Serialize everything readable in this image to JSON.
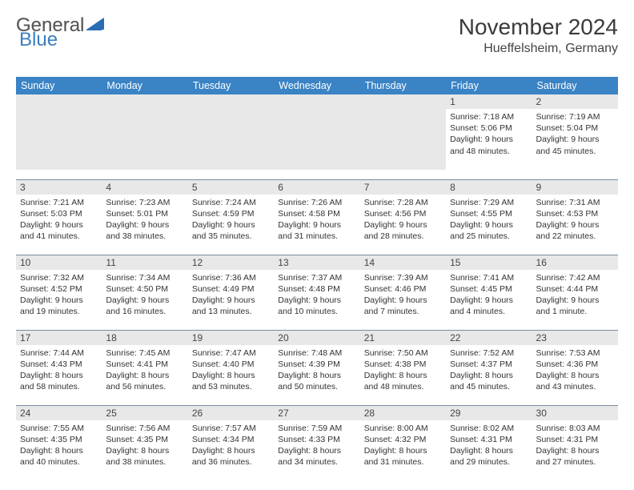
{
  "logo": {
    "part1": "General",
    "part2": "Blue"
  },
  "title": "November 2024",
  "location": "Hueffelsheim, Germany",
  "colors": {
    "header_bg": "#3a83c5",
    "header_text": "#ffffff",
    "daynum_bg": "#e8e8e8",
    "border": "#7a8aa0",
    "logo_blue": "#3a7ebf",
    "text": "#333333",
    "background": "#ffffff"
  },
  "weekdays": [
    "Sunday",
    "Monday",
    "Tuesday",
    "Wednesday",
    "Thursday",
    "Friday",
    "Saturday"
  ],
  "weeks": [
    [
      null,
      null,
      null,
      null,
      null,
      {
        "n": "1",
        "sr": "Sunrise: 7:18 AM",
        "ss": "Sunset: 5:06 PM",
        "dl": "Daylight: 9 hours and 48 minutes."
      },
      {
        "n": "2",
        "sr": "Sunrise: 7:19 AM",
        "ss": "Sunset: 5:04 PM",
        "dl": "Daylight: 9 hours and 45 minutes."
      }
    ],
    [
      {
        "n": "3",
        "sr": "Sunrise: 7:21 AM",
        "ss": "Sunset: 5:03 PM",
        "dl": "Daylight: 9 hours and 41 minutes."
      },
      {
        "n": "4",
        "sr": "Sunrise: 7:23 AM",
        "ss": "Sunset: 5:01 PM",
        "dl": "Daylight: 9 hours and 38 minutes."
      },
      {
        "n": "5",
        "sr": "Sunrise: 7:24 AM",
        "ss": "Sunset: 4:59 PM",
        "dl": "Daylight: 9 hours and 35 minutes."
      },
      {
        "n": "6",
        "sr": "Sunrise: 7:26 AM",
        "ss": "Sunset: 4:58 PM",
        "dl": "Daylight: 9 hours and 31 minutes."
      },
      {
        "n": "7",
        "sr": "Sunrise: 7:28 AM",
        "ss": "Sunset: 4:56 PM",
        "dl": "Daylight: 9 hours and 28 minutes."
      },
      {
        "n": "8",
        "sr": "Sunrise: 7:29 AM",
        "ss": "Sunset: 4:55 PM",
        "dl": "Daylight: 9 hours and 25 minutes."
      },
      {
        "n": "9",
        "sr": "Sunrise: 7:31 AM",
        "ss": "Sunset: 4:53 PM",
        "dl": "Daylight: 9 hours and 22 minutes."
      }
    ],
    [
      {
        "n": "10",
        "sr": "Sunrise: 7:32 AM",
        "ss": "Sunset: 4:52 PM",
        "dl": "Daylight: 9 hours and 19 minutes."
      },
      {
        "n": "11",
        "sr": "Sunrise: 7:34 AM",
        "ss": "Sunset: 4:50 PM",
        "dl": "Daylight: 9 hours and 16 minutes."
      },
      {
        "n": "12",
        "sr": "Sunrise: 7:36 AM",
        "ss": "Sunset: 4:49 PM",
        "dl": "Daylight: 9 hours and 13 minutes."
      },
      {
        "n": "13",
        "sr": "Sunrise: 7:37 AM",
        "ss": "Sunset: 4:48 PM",
        "dl": "Daylight: 9 hours and 10 minutes."
      },
      {
        "n": "14",
        "sr": "Sunrise: 7:39 AM",
        "ss": "Sunset: 4:46 PM",
        "dl": "Daylight: 9 hours and 7 minutes."
      },
      {
        "n": "15",
        "sr": "Sunrise: 7:41 AM",
        "ss": "Sunset: 4:45 PM",
        "dl": "Daylight: 9 hours and 4 minutes."
      },
      {
        "n": "16",
        "sr": "Sunrise: 7:42 AM",
        "ss": "Sunset: 4:44 PM",
        "dl": "Daylight: 9 hours and 1 minute."
      }
    ],
    [
      {
        "n": "17",
        "sr": "Sunrise: 7:44 AM",
        "ss": "Sunset: 4:43 PM",
        "dl": "Daylight: 8 hours and 58 minutes."
      },
      {
        "n": "18",
        "sr": "Sunrise: 7:45 AM",
        "ss": "Sunset: 4:41 PM",
        "dl": "Daylight: 8 hours and 56 minutes."
      },
      {
        "n": "19",
        "sr": "Sunrise: 7:47 AM",
        "ss": "Sunset: 4:40 PM",
        "dl": "Daylight: 8 hours and 53 minutes."
      },
      {
        "n": "20",
        "sr": "Sunrise: 7:48 AM",
        "ss": "Sunset: 4:39 PM",
        "dl": "Daylight: 8 hours and 50 minutes."
      },
      {
        "n": "21",
        "sr": "Sunrise: 7:50 AM",
        "ss": "Sunset: 4:38 PM",
        "dl": "Daylight: 8 hours and 48 minutes."
      },
      {
        "n": "22",
        "sr": "Sunrise: 7:52 AM",
        "ss": "Sunset: 4:37 PM",
        "dl": "Daylight: 8 hours and 45 minutes."
      },
      {
        "n": "23",
        "sr": "Sunrise: 7:53 AM",
        "ss": "Sunset: 4:36 PM",
        "dl": "Daylight: 8 hours and 43 minutes."
      }
    ],
    [
      {
        "n": "24",
        "sr": "Sunrise: 7:55 AM",
        "ss": "Sunset: 4:35 PM",
        "dl": "Daylight: 8 hours and 40 minutes."
      },
      {
        "n": "25",
        "sr": "Sunrise: 7:56 AM",
        "ss": "Sunset: 4:35 PM",
        "dl": "Daylight: 8 hours and 38 minutes."
      },
      {
        "n": "26",
        "sr": "Sunrise: 7:57 AM",
        "ss": "Sunset: 4:34 PM",
        "dl": "Daylight: 8 hours and 36 minutes."
      },
      {
        "n": "27",
        "sr": "Sunrise: 7:59 AM",
        "ss": "Sunset: 4:33 PM",
        "dl": "Daylight: 8 hours and 34 minutes."
      },
      {
        "n": "28",
        "sr": "Sunrise: 8:00 AM",
        "ss": "Sunset: 4:32 PM",
        "dl": "Daylight: 8 hours and 31 minutes."
      },
      {
        "n": "29",
        "sr": "Sunrise: 8:02 AM",
        "ss": "Sunset: 4:31 PM",
        "dl": "Daylight: 8 hours and 29 minutes."
      },
      {
        "n": "30",
        "sr": "Sunrise: 8:03 AM",
        "ss": "Sunset: 4:31 PM",
        "dl": "Daylight: 8 hours and 27 minutes."
      }
    ]
  ]
}
